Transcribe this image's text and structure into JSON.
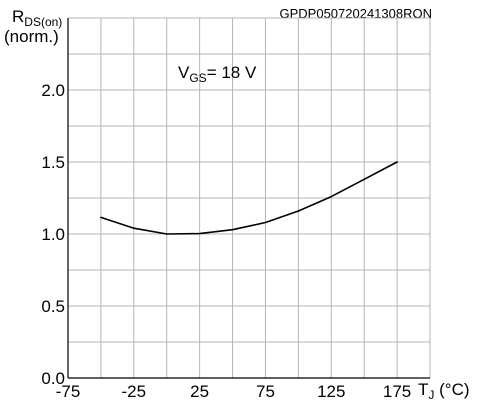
{
  "chart_data": {
    "type": "line",
    "doc_code": "GPDP050720241308RON",
    "ylabel": {
      "main": "R",
      "sub": "DS(on)",
      "unit": "(norm.)"
    },
    "xlabel": {
      "main": "T",
      "sub": "J",
      "unit": " (°C)"
    },
    "annotation": {
      "main": "V",
      "sub": "GS",
      "rest": "= 18 V"
    },
    "x_ticks": [
      -75,
      -50,
      -25,
      0,
      25,
      50,
      75,
      100,
      125,
      150,
      175,
      200
    ],
    "x_tick_labels": [
      "-75",
      "",
      "-25",
      "",
      "25",
      "",
      "75",
      "",
      "125",
      "",
      "175",
      ""
    ],
    "y_ticks": [
      0.0,
      0.25,
      0.5,
      0.75,
      1.0,
      1.25,
      1.5,
      1.75,
      2.0,
      2.25,
      2.5
    ],
    "y_tick_labels": [
      "0.0",
      "",
      "0.5",
      "",
      "1.0",
      "",
      "1.5",
      "",
      "2.0",
      "",
      ""
    ],
    "xlim": [
      -75,
      200
    ],
    "ylim": [
      0,
      2.5
    ],
    "grid": true,
    "series": [
      {
        "x": [
          -50,
          -25,
          0,
          25,
          50,
          75,
          100,
          125,
          150,
          175
        ],
        "y": [
          1.115,
          1.04,
          1.0,
          1.003,
          1.03,
          1.08,
          1.16,
          1.26,
          1.38,
          1.5
        ]
      }
    ]
  }
}
